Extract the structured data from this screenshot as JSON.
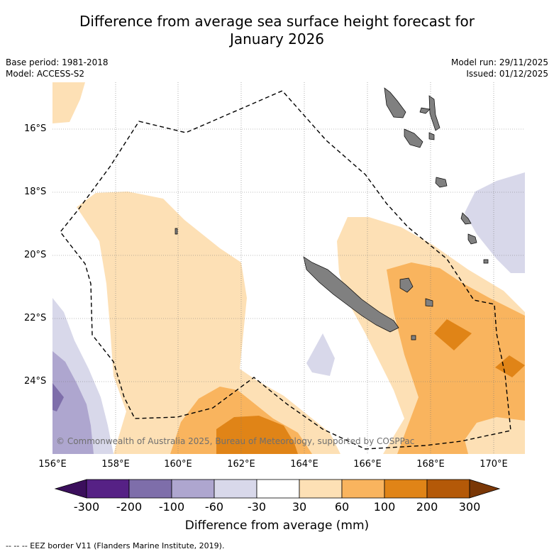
{
  "title_line1": "Difference from average sea surface height forecast for",
  "title_line2": "January 2026",
  "base_period": "Base period: 1981-2018",
  "model": "Model: ACCESS-S2",
  "model_run": "Model run: 29/11/2025",
  "issued": "Issued: 01/12/2025",
  "lat_labels": [
    "16°S",
    "18°S",
    "20°S",
    "22°S",
    "24°S"
  ],
  "lon_labels": [
    "156°E",
    "158°E",
    "160°E",
    "162°E",
    "164°E",
    "166°E",
    "168°E",
    "170°E"
  ],
  "colorbar": {
    "ticks": [
      "-300",
      "-200",
      "-100",
      "-60",
      "-30",
      "30",
      "60",
      "100",
      "200",
      "300"
    ],
    "colors": [
      "#3b0f5c",
      "#562185",
      "#7e6eaa",
      "#aea6cf",
      "#d8d8ea",
      "#ffffff",
      "#fde0b5",
      "#f9b45e",
      "#e08417",
      "#b45908",
      "#7a3706"
    ],
    "title": "Difference from average (mm)"
  },
  "copyright": "© Commonwealth of Australia 2025, Bureau of Meteorology, supported by COSPPac",
  "footnote": "--  --  -- EEZ border V11 (Flanders Marine Institute, 2019)."
}
